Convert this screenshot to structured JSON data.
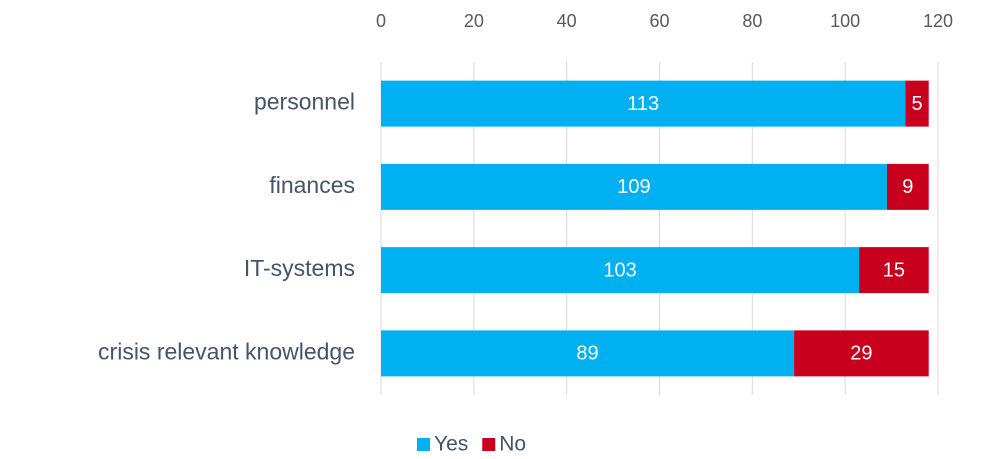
{
  "chart_data": {
    "type": "bar",
    "orientation": "horizontal",
    "stacked": true,
    "categories": [
      "personnel",
      "finances",
      "IT-systems",
      "crisis relevant knowledge"
    ],
    "series": [
      {
        "name": "Yes",
        "color": "#00b0f0",
        "values": [
          113,
          109,
          103,
          89
        ]
      },
      {
        "name": "No",
        "color": "#c8001e",
        "values": [
          5,
          9,
          15,
          29
        ]
      }
    ],
    "xlim": [
      0,
      120
    ],
    "xticks": [
      0,
      20,
      40,
      60,
      80,
      100,
      120
    ],
    "grid": true,
    "legend": "bottom",
    "data_labels": true
  }
}
